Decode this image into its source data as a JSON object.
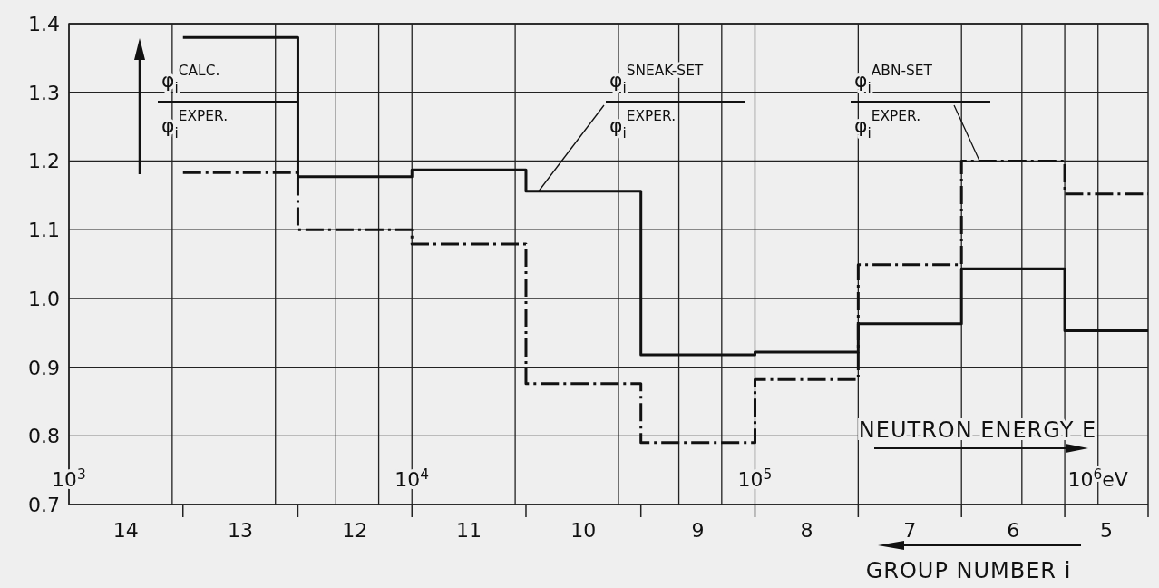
{
  "chart_data": {
    "type": "step",
    "ylabel": "φ$_{i}$$^{CALC.}$\nφ$_{i}$$^{EXPER.}$",
    "xlabel": "NEUTRON ENERGY E",
    "log": "x",
    "grid": true,
    "xlim": [
      1000,
      1400000
    ],
    "xticks": [
      {
        "value": 1000,
        "label": "10$^{3}$"
      },
      {
        "value": 2000,
        "label": null
      },
      {
        "value": 4000,
        "label": null
      },
      {
        "value": 6000,
        "label": null
      },
      {
        "value": 8000,
        "label": null
      },
      {
        "value": 10000,
        "label": "10$^{4}$"
      },
      {
        "value": 20000,
        "label": null
      },
      {
        "value": 40000,
        "label": null
      },
      {
        "value": 60000,
        "label": null
      },
      {
        "value": 80000,
        "label": null
      },
      {
        "value": 100000,
        "label": "10$^{5}$"
      },
      {
        "value": 200000,
        "label": null
      },
      {
        "value": 400000,
        "label": null
      },
      {
        "value": 600000,
        "label": null
      },
      {
        "value": 800000,
        "label": null
      },
      {
        "value": 1000000,
        "label": "10$^{6}$eV"
      }
    ],
    "ylim": [
      0.7,
      1.4
    ],
    "yticks": [
      0.7,
      0.8,
      0.9,
      {
        "value": 1,
        "label": "1.0"
      },
      1.1,
      1.2,
      1.3,
      1.4
    ],
    "annotations": [
      "14",
      "13",
      "12",
      "11",
      "10",
      "9",
      "8",
      "7",
      "6",
      "5",
      "GROUP NUMBER i"
    ],
    "series": [
      {
        "name": "φ$_{i}$$^{SNEAK-SET}$\nφ$_{i}$$^{EXPER.}$",
        "color": "#111111",
        "line_style": "solid",
        "x": [
          2150,
          4650,
          10000,
          21500,
          46500,
          100000,
          200000,
          400000,
          800000,
          1400000
        ],
        "values": [
          1.38,
          1.177,
          1.187,
          1.156,
          0.918,
          0.922,
          0.963,
          1.043,
          0.953,
          0.953
        ]
      },
      {
        "name": "φ$_{i}$$^{ABN-SET}$\nφ$_{i}$$^{EXPER.}$",
        "color": "#111111",
        "line_style": "dashed",
        "x": [
          2150,
          4650,
          10000,
          21500,
          46500,
          100000,
          200000,
          400000,
          800000,
          1400000
        ],
        "values": [
          1.183,
          1.1,
          1.079,
          0.876,
          0.79,
          0.882,
          1.049,
          1.2,
          1.152,
          1.152
        ]
      }
    ]
  }
}
